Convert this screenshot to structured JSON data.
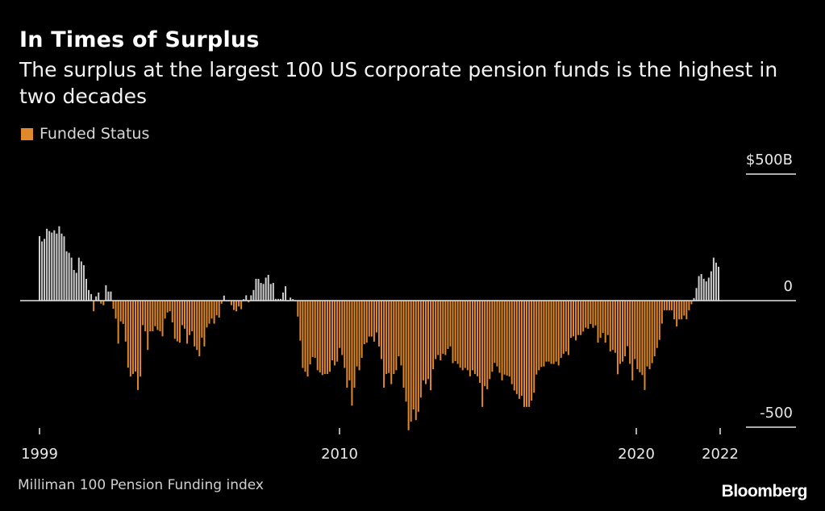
{
  "header": {
    "title": "In Times of Surplus",
    "subtitle": "The surplus at the largest 100 US corporate pension funds is the highest in two decades"
  },
  "footer": {
    "source": "Milliman 100 Pension Funding index",
    "logo": "Bloomberg"
  },
  "colors": {
    "negative": "#e0892a",
    "positive": "#cfcfcf",
    "background": "#000000"
  },
  "chart_data": {
    "type": "bar",
    "title": "In Times of Surplus",
    "legend": [
      {
        "label": "Funded Status",
        "color": "#e0892a"
      }
    ],
    "legend_position": "top-left",
    "ylabel": "",
    "ylim": [
      -500,
      500
    ],
    "y_ticks": [
      {
        "value": 500,
        "label": "$500B"
      },
      {
        "value": 0,
        "label": "0"
      },
      {
        "value": -500,
        "label": "-500"
      }
    ],
    "x_range": [
      1999,
      2022.9
    ],
    "x_ticks": [
      {
        "value": 1999,
        "label": "1999"
      },
      {
        "value": 2010,
        "label": "2010"
      },
      {
        "value": 2020,
        "label": "2020"
      },
      {
        "value": 2022,
        "label": "2022"
      }
    ],
    "frequency": "monthly",
    "grid": false,
    "values": [
      255,
      234,
      244,
      284,
      275,
      269,
      278,
      265,
      294,
      265,
      254,
      195,
      189,
      170,
      121,
      110,
      170,
      155,
      140,
      86,
      42,
      26,
      -42,
      17,
      32,
      -12,
      -18,
      61,
      36,
      36,
      -32,
      -71,
      -170,
      -82,
      -92,
      -162,
      -265,
      -300,
      -290,
      -280,
      -353,
      -300,
      -97,
      -121,
      -195,
      -121,
      -121,
      -101,
      -116,
      -121,
      -141,
      -71,
      -47,
      -42,
      -86,
      -151,
      -161,
      -166,
      -97,
      -111,
      -170,
      -136,
      -121,
      -181,
      -195,
      -220,
      -146,
      -181,
      -106,
      -91,
      -71,
      -91,
      -58,
      -67,
      -12,
      20,
      -2,
      -2,
      -18,
      -37,
      -42,
      -23,
      -34,
      6,
      21,
      -7,
      21,
      42,
      86,
      86,
      70,
      66,
      91,
      102,
      66,
      70,
      7,
      7,
      7,
      32,
      57,
      -2,
      12,
      6,
      -3,
      -63,
      -158,
      -266,
      -281,
      -300,
      -252,
      -223,
      -226,
      -275,
      -284,
      -294,
      -290,
      -290,
      -281,
      -236,
      -256,
      -241,
      -187,
      -215,
      -266,
      -344,
      -315,
      -415,
      -344,
      -260,
      -275,
      -226,
      -172,
      -166,
      -142,
      -142,
      -162,
      -126,
      -181,
      -231,
      -344,
      -290,
      -286,
      -330,
      -290,
      -275,
      -220,
      -256,
      -344,
      -399,
      -512,
      -478,
      -430,
      -472,
      -439,
      -383,
      -315,
      -330,
      -310,
      -354,
      -271,
      -231,
      -215,
      -236,
      -210,
      -215,
      -191,
      -181,
      -247,
      -239,
      -250,
      -265,
      -275,
      -266,
      -275,
      -299,
      -275,
      -290,
      -299,
      -325,
      -420,
      -338,
      -350,
      -310,
      -281,
      -246,
      -260,
      -285,
      -315,
      -292,
      -296,
      -300,
      -330,
      -355,
      -369,
      -388,
      -376,
      -420,
      -420,
      -420,
      -395,
      -364,
      -292,
      -275,
      -262,
      -260,
      -241,
      -241,
      -250,
      -250,
      -241,
      -256,
      -226,
      -210,
      -201,
      -215,
      -147,
      -141,
      -157,
      -136,
      -136,
      -122,
      -107,
      -111,
      -92,
      -107,
      -98,
      -166,
      -147,
      -128,
      -166,
      -136,
      -201,
      -195,
      -206,
      -291,
      -250,
      -241,
      -220,
      -180,
      -250,
      -315,
      -231,
      -271,
      -283,
      -294,
      -353,
      -260,
      -271,
      -247,
      -220,
      -187,
      -155,
      -91,
      -38,
      -38,
      -38,
      -38,
      -74,
      -102,
      -74,
      -74,
      -59,
      -74,
      -38,
      -14,
      10,
      50,
      97,
      105,
      86,
      76,
      91,
      116,
      170,
      150,
      134
    ]
  }
}
